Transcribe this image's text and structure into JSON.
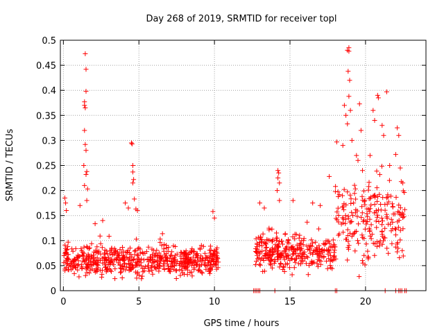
{
  "chart_data": {
    "type": "scatter",
    "title": "Day 268 of 2019, SRMTID for receiver topl",
    "xlabel": "GPS time / hours",
    "ylabel": "SRMTID / TECUs",
    "xlim": [
      -0.2,
      24
    ],
    "ylim": [
      0,
      0.5
    ],
    "grid": true,
    "marker": "+",
    "xticks": [
      0,
      5,
      10,
      15,
      20
    ],
    "xtick_labels": [
      "0",
      "5",
      "10",
      "15",
      "20"
    ],
    "yticks": [
      0,
      0.05,
      0.1,
      0.15,
      0.2,
      0.25,
      0.3,
      0.35,
      0.4,
      0.45,
      0.5
    ],
    "ytick_labels": [
      "0",
      "0.05",
      "0.1",
      "0.15",
      "0.2",
      "0.25",
      "0.3",
      "0.35",
      "0.4",
      "0.45",
      "0.5"
    ],
    "series": [
      {
        "name": "SRMTID",
        "color": "#ff0000",
        "segments": [
          {
            "x_start": 0.0,
            "x_end": 10.3,
            "y_typical": 0.06,
            "y_spread": 0.045,
            "density": 5
          },
          {
            "x_start": 12.7,
            "x_end": 18.0,
            "y_typical": 0.075,
            "y_spread": 0.05,
            "density": 5
          },
          {
            "x_start": 18.0,
            "x_end": 22.6,
            "y_typical": 0.14,
            "y_spread": 0.12,
            "density": 4
          }
        ],
        "notable_points": [
          {
            "x": 0.1,
            "y": 0.185
          },
          {
            "x": 0.15,
            "y": 0.175
          },
          {
            "x": 0.2,
            "y": 0.16
          },
          {
            "x": 1.1,
            "y": 0.17
          },
          {
            "x": 1.45,
            "y": 0.473
          },
          {
            "x": 1.5,
            "y": 0.442
          },
          {
            "x": 1.5,
            "y": 0.398
          },
          {
            "x": 1.4,
            "y": 0.377
          },
          {
            "x": 1.4,
            "y": 0.37
          },
          {
            "x": 1.45,
            "y": 0.365
          },
          {
            "x": 1.4,
            "y": 0.32
          },
          {
            "x": 1.45,
            "y": 0.292
          },
          {
            "x": 1.5,
            "y": 0.28
          },
          {
            "x": 1.35,
            "y": 0.25
          },
          {
            "x": 1.55,
            "y": 0.238
          },
          {
            "x": 1.5,
            "y": 0.232
          },
          {
            "x": 1.4,
            "y": 0.21
          },
          {
            "x": 1.6,
            "y": 0.203
          },
          {
            "x": 1.55,
            "y": 0.18
          },
          {
            "x": 2.6,
            "y": 0.14
          },
          {
            "x": 4.1,
            "y": 0.175
          },
          {
            "x": 4.3,
            "y": 0.165
          },
          {
            "x": 4.5,
            "y": 0.295
          },
          {
            "x": 4.55,
            "y": 0.293
          },
          {
            "x": 4.6,
            "y": 0.25
          },
          {
            "x": 4.6,
            "y": 0.237
          },
          {
            "x": 4.65,
            "y": 0.222
          },
          {
            "x": 4.6,
            "y": 0.215
          },
          {
            "x": 4.7,
            "y": 0.183
          },
          {
            "x": 4.8,
            "y": 0.163
          },
          {
            "x": 4.9,
            "y": 0.16
          },
          {
            "x": 9.9,
            "y": 0.158
          },
          {
            "x": 10.0,
            "y": 0.145
          },
          {
            "x": 13.0,
            "y": 0.175
          },
          {
            "x": 13.3,
            "y": 0.165
          },
          {
            "x": 14.2,
            "y": 0.24
          },
          {
            "x": 14.25,
            "y": 0.235
          },
          {
            "x": 14.2,
            "y": 0.225
          },
          {
            "x": 14.3,
            "y": 0.215
          },
          {
            "x": 14.15,
            "y": 0.2
          },
          {
            "x": 14.3,
            "y": 0.18
          },
          {
            "x": 15.2,
            "y": 0.18
          },
          {
            "x": 16.5,
            "y": 0.175
          },
          {
            "x": 17.0,
            "y": 0.17
          },
          {
            "x": 17.6,
            "y": 0.228
          },
          {
            "x": 18.5,
            "y": 0.29
          },
          {
            "x": 18.6,
            "y": 0.37
          },
          {
            "x": 18.7,
            "y": 0.35
          },
          {
            "x": 18.8,
            "y": 0.333
          },
          {
            "x": 18.8,
            "y": 0.48
          },
          {
            "x": 18.9,
            "y": 0.485
          },
          {
            "x": 18.9,
            "y": 0.478
          },
          {
            "x": 18.85,
            "y": 0.438
          },
          {
            "x": 18.95,
            "y": 0.42
          },
          {
            "x": 18.9,
            "y": 0.388
          },
          {
            "x": 19.0,
            "y": 0.36
          },
          {
            "x": 19.1,
            "y": 0.3
          },
          {
            "x": 19.4,
            "y": 0.27
          },
          {
            "x": 19.5,
            "y": 0.26
          },
          {
            "x": 19.6,
            "y": 0.373
          },
          {
            "x": 19.7,
            "y": 0.32
          },
          {
            "x": 19.8,
            "y": 0.24
          },
          {
            "x": 20.3,
            "y": 0.27
          },
          {
            "x": 20.5,
            "y": 0.36
          },
          {
            "x": 20.6,
            "y": 0.34
          },
          {
            "x": 20.8,
            "y": 0.39
          },
          {
            "x": 20.85,
            "y": 0.385
          },
          {
            "x": 21.1,
            "y": 0.33
          },
          {
            "x": 21.2,
            "y": 0.31
          },
          {
            "x": 21.4,
            "y": 0.397
          },
          {
            "x": 21.6,
            "y": 0.25
          },
          {
            "x": 22.0,
            "y": 0.272
          },
          {
            "x": 22.1,
            "y": 0.325
          },
          {
            "x": 22.2,
            "y": 0.31
          },
          {
            "x": 22.3,
            "y": 0.245
          }
        ],
        "zero_points_x": [
          12.6,
          12.7,
          12.8,
          12.9,
          13.0,
          14.0,
          18.0,
          18.1,
          21.3,
          22.0,
          22.2,
          22.3,
          22.4,
          22.6,
          22.7
        ]
      }
    ]
  }
}
